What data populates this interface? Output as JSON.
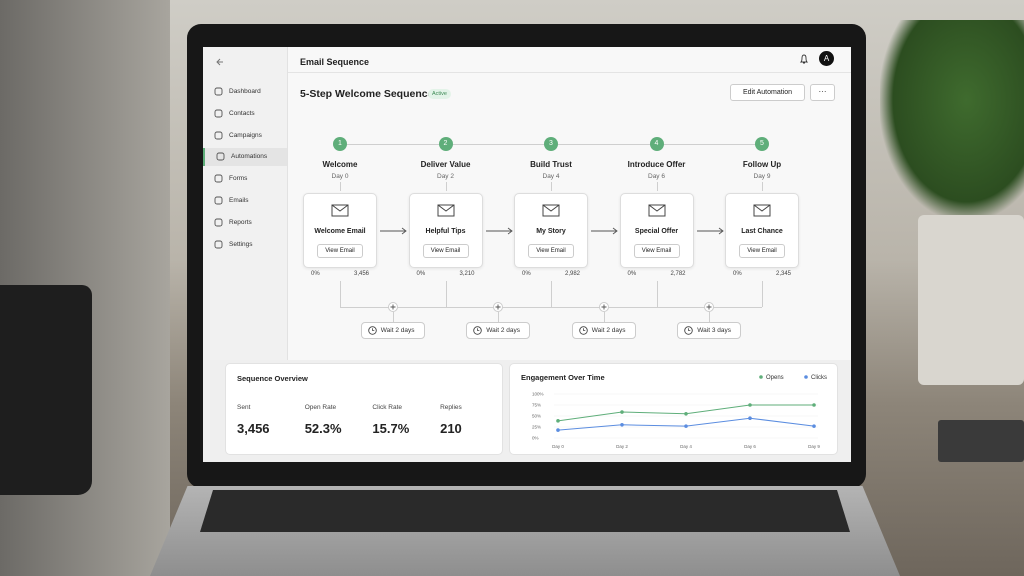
{
  "sidebar": {
    "items": [
      "Dashboard",
      "Contacts",
      "Campaigns",
      "Automations",
      "Forms",
      "Emails",
      "Reports",
      "Settings"
    ],
    "active": 3
  },
  "header": {
    "title": "Email Sequence",
    "avatar": "A"
  },
  "automation": {
    "title": "5-Step Welcome Sequence",
    "status": "Active",
    "edit_button": "Edit Automation",
    "more_button": "···"
  },
  "steps": [
    {
      "number": 1,
      "name": "Welcome",
      "day": "Day 0",
      "email": "Welcome Email",
      "button": "View Email",
      "rate": "0%",
      "count": "3,456"
    },
    {
      "number": 2,
      "name": "Deliver Value",
      "day": "Day 2",
      "email": "Helpful Tips",
      "button": "View Email",
      "rate": "0%",
      "count": "3,210"
    },
    {
      "number": 3,
      "name": "Build Trust",
      "day": "Day 4",
      "email": "My Story",
      "button": "View Email",
      "rate": "0%",
      "count": "2,982"
    },
    {
      "number": 4,
      "name": "Introduce Offer",
      "day": "Day 6",
      "email": "Special Offer",
      "button": "View Email",
      "rate": "0%",
      "count": "2,782"
    },
    {
      "number": 5,
      "name": "Follow Up",
      "day": "Day 9",
      "email": "Last Chance",
      "button": "View Email",
      "rate": "0%",
      "count": "2,345"
    }
  ],
  "waits": [
    "Wait 2 days",
    "Wait 2 days",
    "Wait 2 days",
    "Wait 3 days"
  ],
  "overview": {
    "title": "Sequence Overview",
    "metrics": [
      {
        "label": "Sent",
        "value": "3,456"
      },
      {
        "label": "Open Rate",
        "value": "52.3%"
      },
      {
        "label": "Click Rate",
        "value": "15.7%"
      },
      {
        "label": "Replies",
        "value": "210"
      }
    ]
  },
  "engagement_chart": {
    "type": "line",
    "title": "Engagement Over Time",
    "categories": [
      "Day 0",
      "Day 2",
      "Day 4",
      "Day 6",
      "Day 9"
    ],
    "series": [
      {
        "name": "Opens",
        "color": "#5fae7a",
        "values": [
          39,
          59,
          55,
          75,
          75
        ]
      },
      {
        "name": "Clicks",
        "color": "#5b8de0",
        "values": [
          18,
          30,
          27,
          45,
          27
        ]
      }
    ],
    "ylim": [
      0,
      100
    ],
    "yticks": [
      {
        "value": 0,
        "label": "0%"
      },
      {
        "value": 25,
        "label": "25%"
      },
      {
        "value": 50,
        "label": "50%"
      },
      {
        "value": 75,
        "label": "75%"
      },
      {
        "value": 100,
        "label": "100%"
      }
    ]
  }
}
